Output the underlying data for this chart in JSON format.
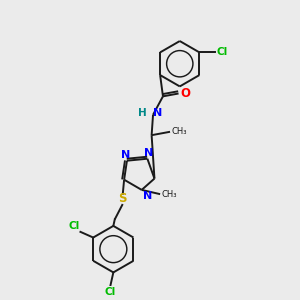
{
  "background_color": "#ebebeb",
  "bond_color": "#1a1a1a",
  "nitrogen_color": "#0000ff",
  "oxygen_color": "#ff0000",
  "sulfur_color": "#ccaa00",
  "chlorine_color": "#00bb00",
  "hydrogen_color": "#008888",
  "lw": 1.4,
  "fs": 7.5,
  "xlim": [
    0,
    10
  ],
  "ylim": [
    0,
    10
  ]
}
